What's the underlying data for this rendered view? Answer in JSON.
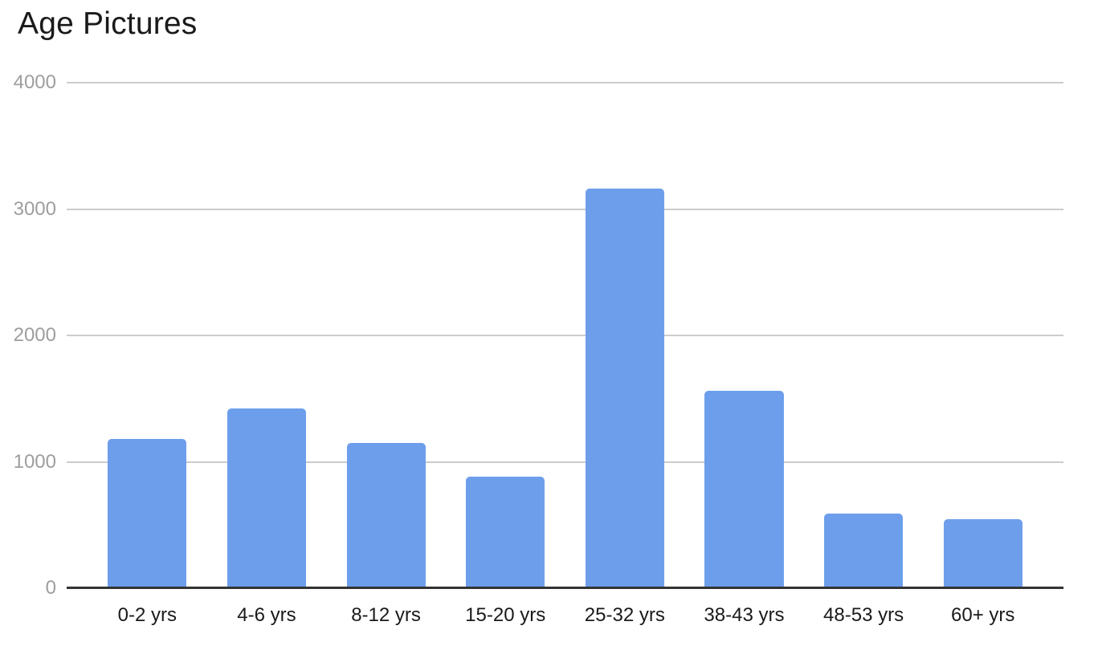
{
  "chart_data": {
    "type": "bar",
    "title": "Age Pictures",
    "categories": [
      "0-2 yrs",
      "4-6 yrs",
      "8-12 yrs",
      "15-20 yrs",
      "25-32 yrs",
      "38-43 yrs",
      "48-53 yrs",
      "60+ yrs"
    ],
    "values": [
      1180,
      1425,
      1150,
      880,
      3160,
      1560,
      590,
      545
    ],
    "xlabel": "",
    "ylabel": "",
    "y_ticks": [
      0,
      1000,
      2000,
      3000,
      4000
    ],
    "ylim": [
      0,
      4000
    ],
    "grid": true,
    "legend_position": "none",
    "colors": {
      "bar": "#6d9eeb",
      "gridline": "#cccccc",
      "baseline": "#333333",
      "y_label": "#9e9e9e",
      "x_label": "#1a1a1a",
      "title": "#1a1a1a",
      "background": "#ffffff"
    }
  }
}
